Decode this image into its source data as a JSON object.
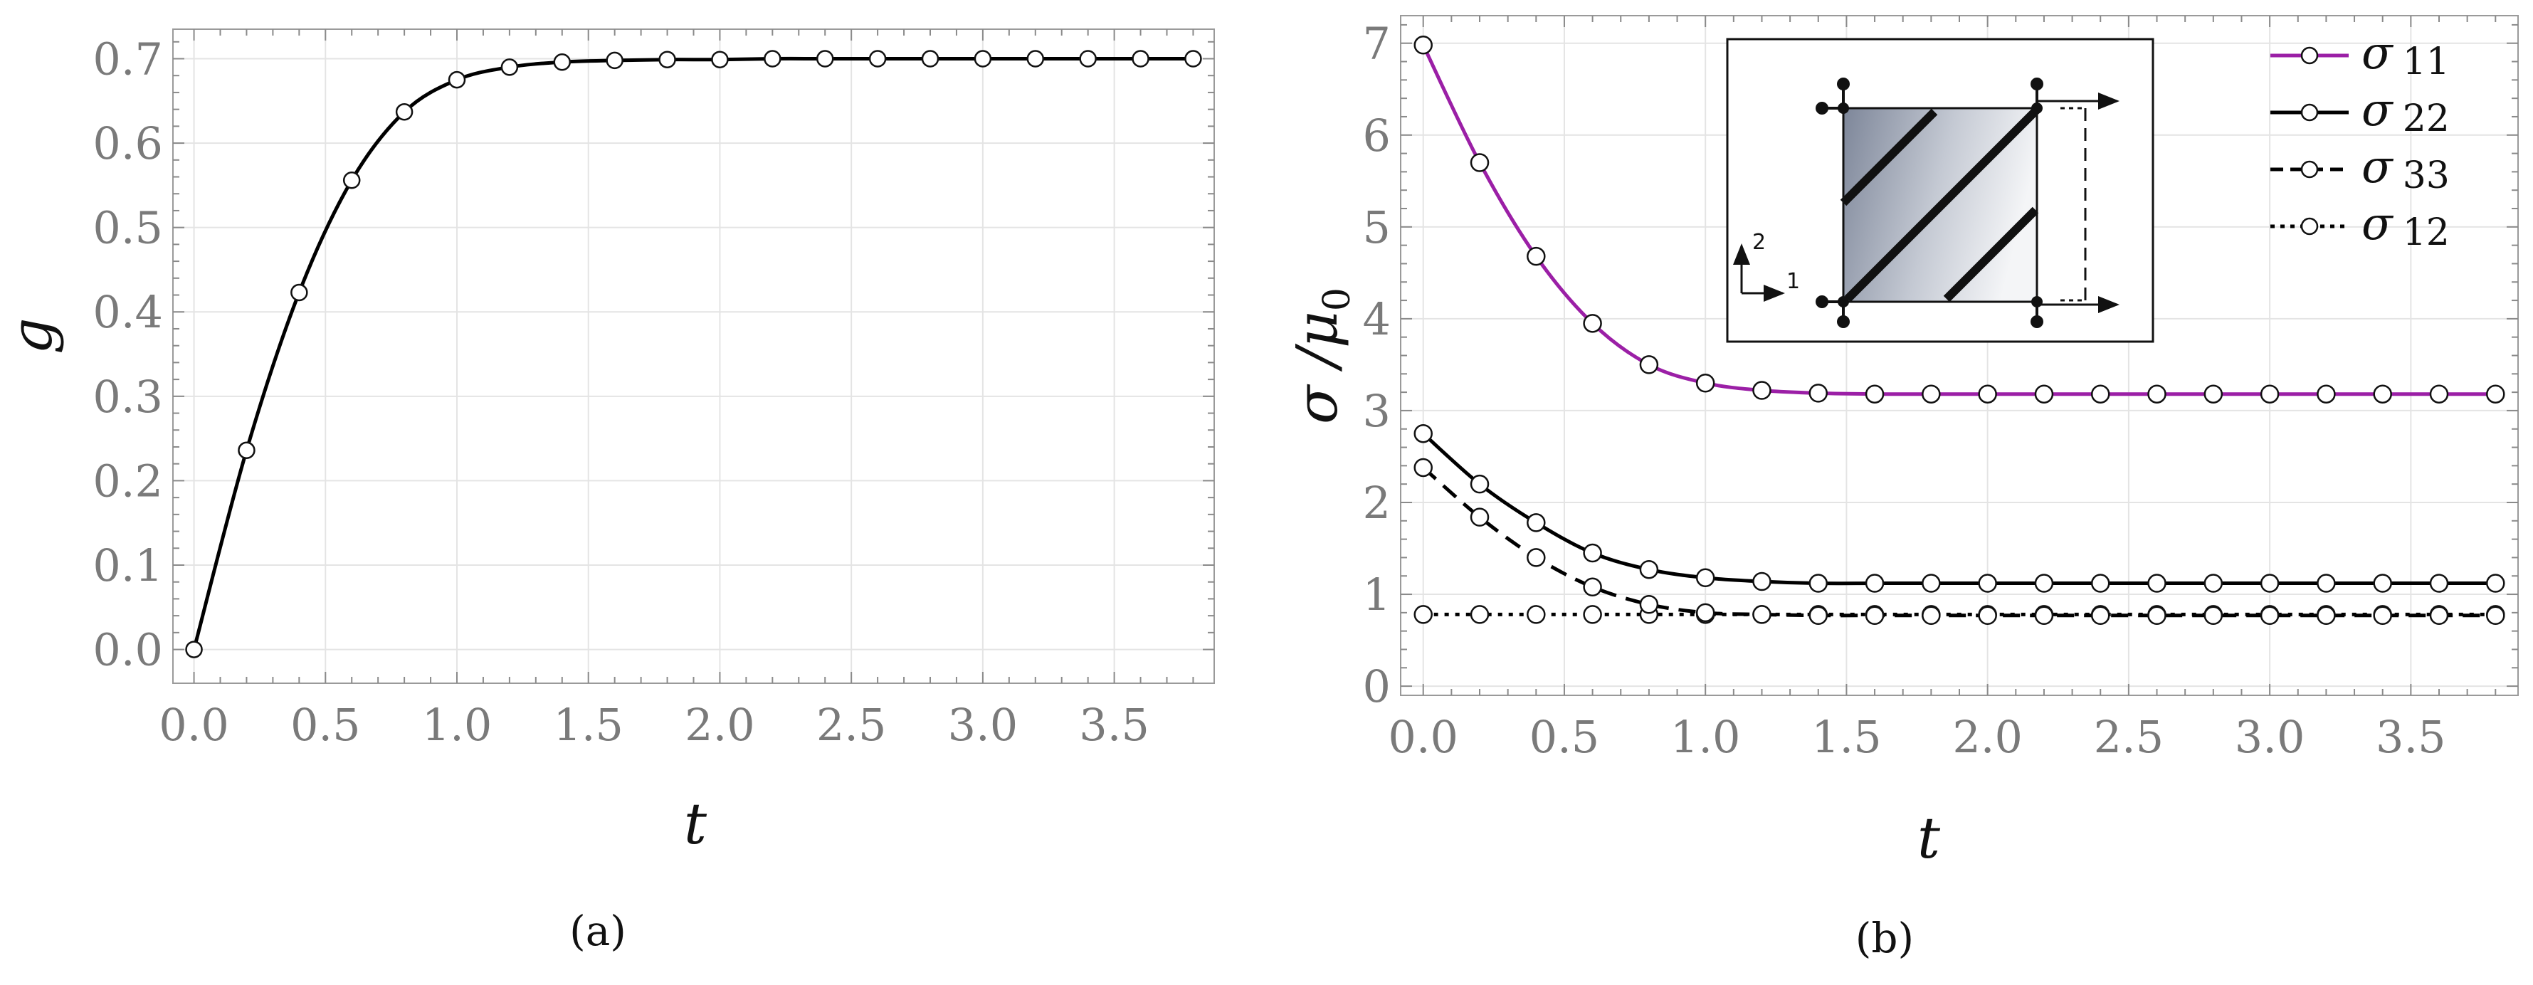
{
  "chart_data": [
    {
      "id": "a",
      "type": "line",
      "caption": "(a)",
      "xlabel": "t",
      "ylabel": "g",
      "xlim": [
        -0.08,
        3.88
      ],
      "ylim": [
        -0.04,
        0.735
      ],
      "xticks": [
        "0.0",
        "0.5",
        "1.0",
        "1.5",
        "2.0",
        "2.5",
        "3.0",
        "3.5"
      ],
      "xtick_values": [
        0,
        0.5,
        1,
        1.5,
        2,
        2.5,
        3,
        3.5
      ],
      "yticks": [
        "0.0",
        "0.1",
        "0.2",
        "0.3",
        "0.4",
        "0.5",
        "0.6",
        "0.7"
      ],
      "ytick_values": [
        0,
        0.1,
        0.2,
        0.3,
        0.4,
        0.5,
        0.6,
        0.7
      ],
      "grid": true,
      "x": [
        0.0,
        0.2,
        0.4,
        0.6,
        0.8,
        1.0,
        1.2,
        1.4,
        1.6,
        1.8,
        2.0,
        2.2,
        2.4,
        2.6,
        2.8,
        3.0,
        3.2,
        3.4,
        3.6,
        3.8
      ],
      "series": [
        {
          "color": "#000000",
          "dash": "solid",
          "values": [
            0.0,
            0.236,
            0.423,
            0.556,
            0.637,
            0.675,
            0.69,
            0.696,
            0.698,
            0.699,
            0.699,
            0.7,
            0.7,
            0.7,
            0.7,
            0.7,
            0.7,
            0.7,
            0.7,
            0.7
          ]
        }
      ]
    },
    {
      "id": "b",
      "type": "line",
      "caption": "(b)",
      "xlabel": "t",
      "ylabel": "σ /μ",
      "ylabel_sub": "0",
      "xlim": [
        -0.08,
        3.88
      ],
      "ylim": [
        -0.1,
        7.3
      ],
      "xticks": [
        "0.0",
        "0.5",
        "1.0",
        "1.5",
        "2.0",
        "2.5",
        "3.0",
        "3.5"
      ],
      "xtick_values": [
        0,
        0.5,
        1,
        1.5,
        2,
        2.5,
        3,
        3.5
      ],
      "yticks": [
        "0",
        "1",
        "2",
        "3",
        "4",
        "5",
        "6",
        "7"
      ],
      "ytick_values": [
        0,
        1,
        2,
        3,
        4,
        5,
        6,
        7
      ],
      "grid": true,
      "legend_position": "top-right",
      "x": [
        0.0,
        0.2,
        0.4,
        0.6,
        0.8,
        1.0,
        1.2,
        1.4,
        1.6,
        1.8,
        2.0,
        2.2,
        2.4,
        2.6,
        2.8,
        3.0,
        3.2,
        3.4,
        3.6,
        3.8
      ],
      "series": [
        {
          "legend_symbol": "σ",
          "legend_sub": "11",
          "color": "#9b1fa6",
          "dash": "solid",
          "values": [
            6.98,
            5.7,
            4.68,
            3.95,
            3.5,
            3.3,
            3.22,
            3.19,
            3.18,
            3.18,
            3.18,
            3.18,
            3.18,
            3.18,
            3.18,
            3.18,
            3.18,
            3.18,
            3.18,
            3.18
          ]
        },
        {
          "legend_symbol": "σ",
          "legend_sub": "22",
          "color": "#000000",
          "dash": "solid",
          "values": [
            2.75,
            2.2,
            1.78,
            1.45,
            1.27,
            1.18,
            1.14,
            1.12,
            1.12,
            1.12,
            1.12,
            1.12,
            1.12,
            1.12,
            1.12,
            1.12,
            1.12,
            1.12,
            1.12,
            1.12
          ]
        },
        {
          "legend_symbol": "σ",
          "legend_sub": "33",
          "color": "#000000",
          "dash": "dashed",
          "values": [
            2.38,
            1.84,
            1.4,
            1.08,
            0.89,
            0.8,
            0.78,
            0.77,
            0.77,
            0.77,
            0.77,
            0.77,
            0.77,
            0.77,
            0.77,
            0.77,
            0.77,
            0.77,
            0.77,
            0.77
          ]
        },
        {
          "legend_symbol": "σ",
          "legend_sub": "12",
          "color": "#000000",
          "dash": "dotted",
          "values": [
            0.78,
            0.78,
            0.78,
            0.78,
            0.78,
            0.78,
            0.78,
            0.78,
            0.78,
            0.78,
            0.78,
            0.78,
            0.78,
            0.78,
            0.78,
            0.78,
            0.78,
            0.78,
            0.78,
            0.78
          ]
        }
      ],
      "inset": {
        "axis_labels": [
          "1",
          "2"
        ]
      }
    }
  ]
}
